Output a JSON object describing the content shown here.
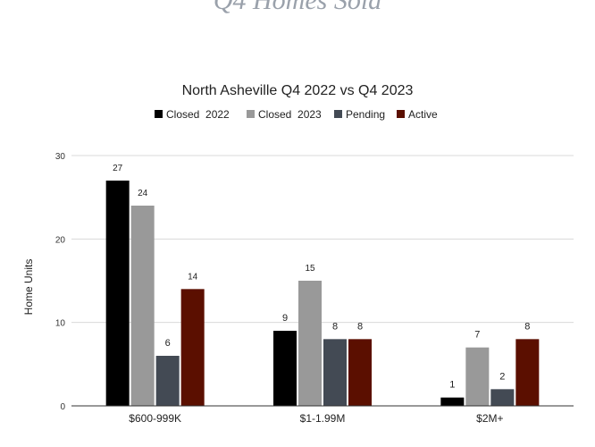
{
  "page_heading": "Q4 Homes Sold",
  "chart_data": {
    "type": "bar",
    "title": "North Asheville Q4 2022 vs Q4 2023",
    "xlabel": "",
    "ylabel": "Home Units",
    "ylim": [
      0,
      30
    ],
    "yticks": [
      "0",
      "10",
      "20",
      "30"
    ],
    "grid": true,
    "legend_position": "top",
    "categories": [
      "$600-999K",
      "$1-1.99M",
      "$2M+"
    ],
    "series": [
      {
        "name": "Closed  2022",
        "color": "#000000",
        "values": [
          27,
          9,
          1
        ]
      },
      {
        "name": "Closed  2023",
        "color": "#999999",
        "values": [
          24,
          15,
          7
        ]
      },
      {
        "name": "Pending",
        "color": "#434a54",
        "values": [
          6,
          8,
          2
        ]
      },
      {
        "name": "Active",
        "color": "#5b0f00",
        "values": [
          14,
          8,
          8
        ]
      }
    ]
  }
}
